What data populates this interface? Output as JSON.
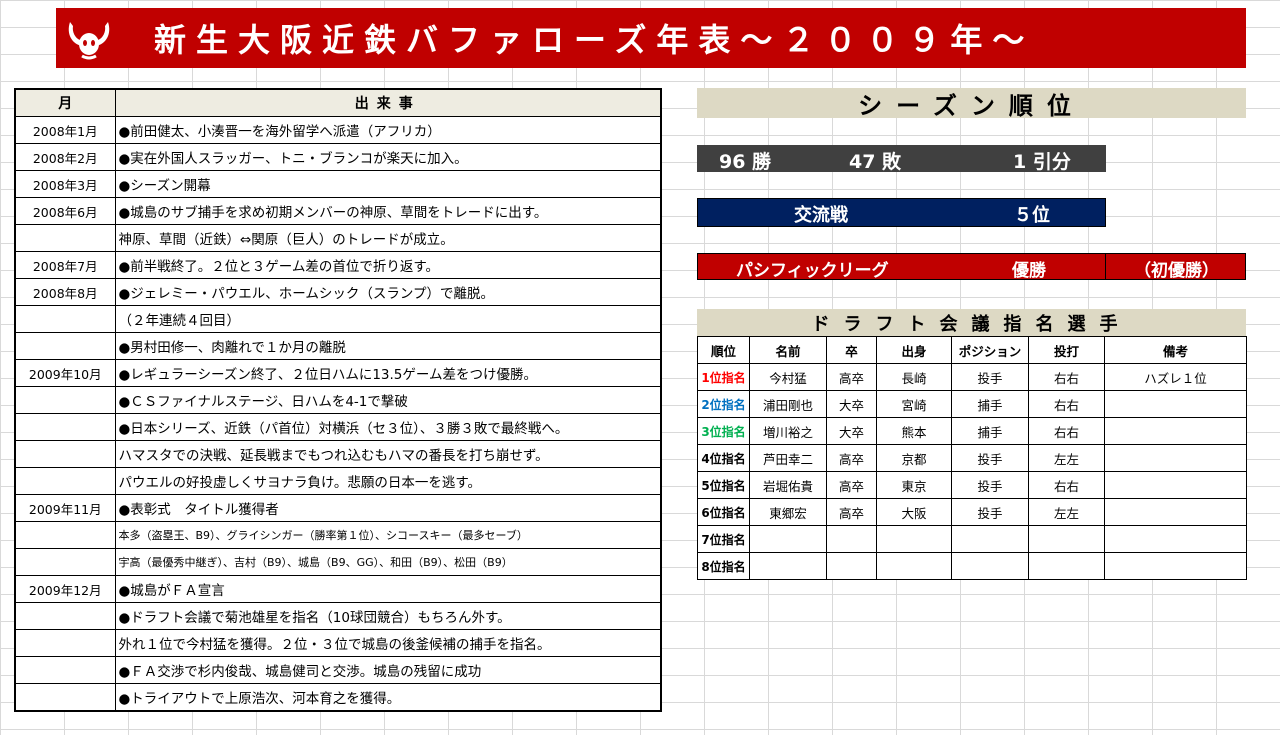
{
  "banner": {
    "title": "新生大阪近鉄バファローズ年表～２００９年～",
    "logo_icon": "buffalo-horns-icon",
    "bg_color": "#c00000"
  },
  "events_table": {
    "headers": {
      "month": "月",
      "event": "出来事"
    },
    "rows": [
      {
        "month": "2008年1月",
        "text": "●前田健太、小湊晋一を海外留学へ派遣（アフリカ）",
        "small": false
      },
      {
        "month": "2008年2月",
        "text": "●実在外国人スラッガー、トニ・ブランコが楽天に加入。",
        "small": false
      },
      {
        "month": "2008年3月",
        "text": "●シーズン開幕",
        "small": false
      },
      {
        "month": "2008年6月",
        "text": "●城島のサブ捕手を求め初期メンバーの神原、草間をトレードに出す。",
        "small": false
      },
      {
        "month": "",
        "text": "神原、草間（近鉄）⇔関原（巨人）のトレードが成立。",
        "small": false
      },
      {
        "month": "2008年7月",
        "text": "●前半戦終了。２位と３ゲーム差の首位で折り返す。",
        "small": false
      },
      {
        "month": "2008年8月",
        "text": "●ジェレミー・パウエル、ホームシック（スランプ）で離脱。",
        "small": false
      },
      {
        "month": "",
        "text": "（２年連続４回目）",
        "small": false
      },
      {
        "month": "",
        "text": "●男村田修一、肉離れで１か月の離脱",
        "small": false
      },
      {
        "month": "2009年10月",
        "text": "●レギュラーシーズン終了、２位日ハムに13.5ゲーム差をつけ優勝。",
        "small": false
      },
      {
        "month": "",
        "text": "●ＣＳファイナルステージ、日ハムを4-1で撃破",
        "small": false
      },
      {
        "month": "",
        "text": "●日本シリーズ、近鉄（パ首位）対横浜（セ３位）、３勝３敗で最終戦へ。",
        "small": false
      },
      {
        "month": "",
        "text": "ハマスタでの決戦、延長戦までもつれ込むもハマの番長を打ち崩せず。",
        "small": false
      },
      {
        "month": "",
        "text": "パウエルの好投虚しくサヨナラ負け。悲願の日本一を逃す。",
        "small": false
      },
      {
        "month": "2009年11月",
        "text": "●表彰式　タイトル獲得者",
        "small": false
      },
      {
        "month": "",
        "text": "本多（盗塁王、B9）、グライシンガー（勝率第１位）、シコースキー（最多セーブ）",
        "small": true
      },
      {
        "month": "",
        "text": "宇高（最優秀中継ぎ）、吉村（B9）、城島（B9、GG）、和田（B9）、松田（B9）",
        "small": true
      },
      {
        "month": "2009年12月",
        "text": "●城島がＦＡ宣言",
        "small": false
      },
      {
        "month": "",
        "text": "●ドラフト会議で菊池雄星を指名（10球団競合）もちろん外す。",
        "small": false
      },
      {
        "month": "",
        "text": "外れ１位で今村猛を獲得。２位・３位で城島の後釜候補の捕手を指名。",
        "small": false
      },
      {
        "month": "",
        "text": "●ＦＡ交渉で杉内俊哉、城島健司と交渉。城島の残留に成功",
        "small": false
      },
      {
        "month": "",
        "text": "●トライアウトで上原浩次、河本育之を獲得。",
        "small": false
      }
    ]
  },
  "season": {
    "heading": "シーズン順位",
    "wins": "96 勝",
    "losses": "47 敗",
    "draws": "1 引分",
    "interleague_label": "交流戦",
    "interleague_rank": "５位",
    "league_label": "パシフィックリーグ",
    "league_result": "優勝",
    "league_note": "（初優勝）"
  },
  "draft": {
    "heading": "ドラフト会議指名選手",
    "headers": [
      "順位",
      "名前",
      "卒",
      "出身",
      "ポジション",
      "投打",
      "備考"
    ],
    "rows": [
      {
        "rank": "1位指名",
        "rank_color": "#ff0000",
        "name": "今村猛",
        "grad": "高卒",
        "origin": "長崎",
        "position": "投手",
        "bats": "右右",
        "note": "ハズレ１位"
      },
      {
        "rank": "2位指名",
        "rank_color": "#0070c0",
        "name": "浦田剛也",
        "grad": "大卒",
        "origin": "宮崎",
        "position": "捕手",
        "bats": "右右",
        "note": ""
      },
      {
        "rank": "3位指名",
        "rank_color": "#00b050",
        "name": "増川裕之",
        "grad": "大卒",
        "origin": "熊本",
        "position": "捕手",
        "bats": "右右",
        "note": ""
      },
      {
        "rank": "4位指名",
        "rank_color": "#000000",
        "name": "芦田幸二",
        "grad": "高卒",
        "origin": "京都",
        "position": "投手",
        "bats": "左左",
        "note": ""
      },
      {
        "rank": "5位指名",
        "rank_color": "#000000",
        "name": "岩堀佑貴",
        "grad": "高卒",
        "origin": "東京",
        "position": "投手",
        "bats": "右右",
        "note": ""
      },
      {
        "rank": "6位指名",
        "rank_color": "#000000",
        "name": "東郷宏",
        "grad": "高卒",
        "origin": "大阪",
        "position": "投手",
        "bats": "左左",
        "note": ""
      },
      {
        "rank": "7位指名",
        "rank_color": "#000000",
        "name": "",
        "grad": "",
        "origin": "",
        "position": "",
        "bats": "",
        "note": ""
      },
      {
        "rank": "8位指名",
        "rank_color": "#000000",
        "name": "",
        "grad": "",
        "origin": "",
        "position": "",
        "bats": "",
        "note": ""
      }
    ]
  }
}
